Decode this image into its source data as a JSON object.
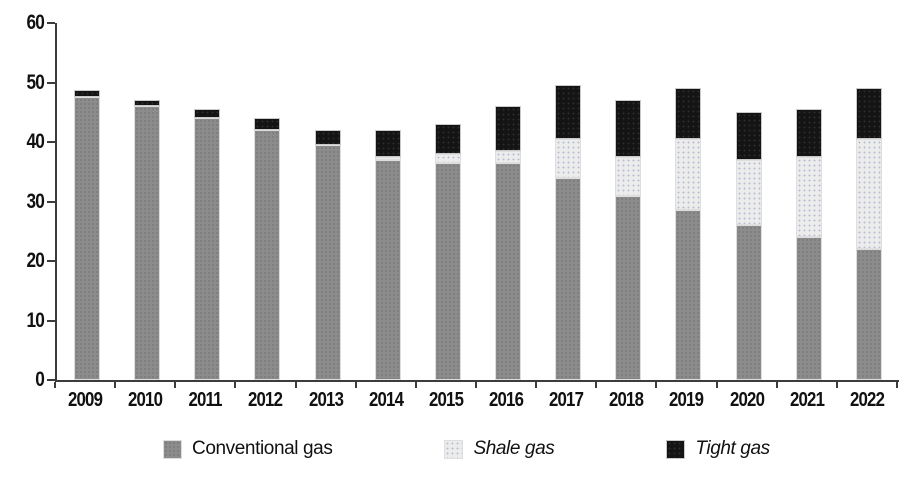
{
  "chart_data": {
    "type": "bar",
    "stacked": true,
    "title": "",
    "xlabel": "",
    "ylabel": "",
    "ylim": [
      0,
      60
    ],
    "yticks": [
      0,
      10,
      20,
      30,
      40,
      50,
      60
    ],
    "grid": false,
    "legend_position": "bottom",
    "categories": [
      "2009",
      "2010",
      "2011",
      "2012",
      "2013",
      "2014",
      "2015",
      "2016",
      "2017",
      "2018",
      "2019",
      "2020",
      "2021",
      "2022"
    ],
    "series": [
      {
        "name": "Conventional gas",
        "color": "#8c8c8c",
        "legend_italic": false,
        "values": [
          47.5,
          46,
          44,
          42,
          39.5,
          37,
          36.5,
          36.5,
          34,
          31,
          28.5,
          26,
          24,
          22
        ]
      },
      {
        "name": "Shale gas",
        "color": "#ececec",
        "legend_italic": true,
        "values": [
          0,
          0,
          0,
          0,
          0,
          0.5,
          1.5,
          2,
          6.5,
          6.5,
          12,
          11,
          13.5,
          18.5
        ]
      },
      {
        "name": "Tight gas",
        "color": "#141414",
        "legend_italic": true,
        "values": [
          1.3,
          1,
          1.5,
          2,
          2.5,
          4.5,
          5,
          7.5,
          9,
          9.5,
          8.5,
          8,
          8,
          8.5
        ]
      }
    ]
  },
  "colors": {
    "axis": "#3c3c3c",
    "text": "#111111",
    "background": "#ffffff",
    "bar_outline": "#d9d9d9"
  }
}
